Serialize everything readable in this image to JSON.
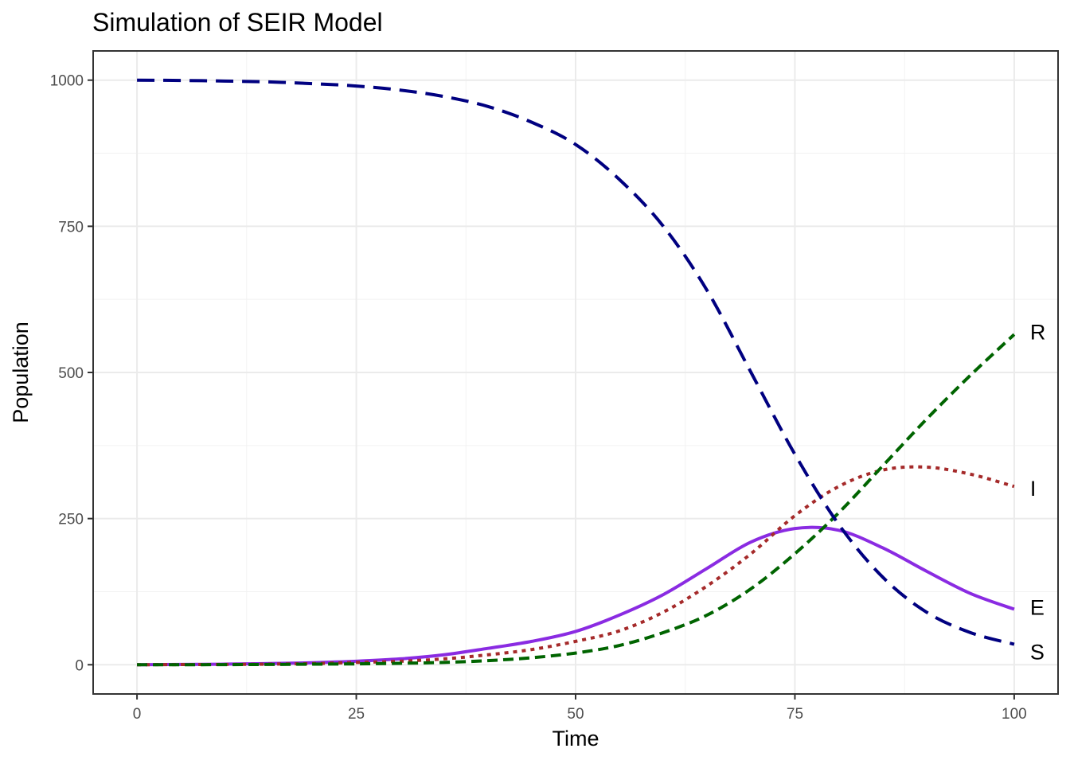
{
  "chart_data": {
    "type": "line",
    "title": "Simulation of SEIR Model",
    "xlabel": "Time",
    "ylabel": "Population",
    "xlim": [
      -5,
      105
    ],
    "ylim": [
      -50,
      1050
    ],
    "x_ticks": [
      0,
      25,
      50,
      75,
      100
    ],
    "y_ticks": [
      0,
      250,
      500,
      750,
      1000
    ],
    "grid": true,
    "legend": "direct-labels-right",
    "x": [
      0,
      5,
      10,
      15,
      20,
      25,
      30,
      35,
      40,
      45,
      50,
      55,
      60,
      65,
      70,
      75,
      80,
      85,
      90,
      95,
      100
    ],
    "series": [
      {
        "name": "S",
        "color": "#000080",
        "dash": "long-dash",
        "values": [
          1000,
          999.5,
          998.5,
          997,
          994,
          990,
          983,
          972,
          955,
          928,
          890,
          830,
          750,
          640,
          500,
          360,
          240,
          150,
          90,
          55,
          35
        ]
      },
      {
        "name": "E",
        "color": "#8A2BE2",
        "dash": "solid",
        "values": [
          0,
          0.5,
          1,
          2,
          3.5,
          6,
          10,
          17,
          28,
          40,
          57,
          85,
          120,
          165,
          210,
          233,
          230,
          200,
          160,
          122,
          95
        ]
      },
      {
        "name": "I",
        "color": "#A52A2A",
        "dash": "dotted",
        "values": [
          0,
          0.3,
          0.5,
          1,
          2,
          4,
          6,
          10,
          17,
          26,
          40,
          58,
          90,
          135,
          190,
          255,
          305,
          333,
          338,
          326,
          305
        ]
      },
      {
        "name": "R",
        "color": "#006400",
        "dash": "dashed",
        "values": [
          0,
          0,
          0.2,
          0.5,
          1,
          1.5,
          2.5,
          4,
          7,
          12,
          20,
          33,
          55,
          85,
          130,
          190,
          260,
          340,
          420,
          495,
          565
        ]
      }
    ]
  }
}
